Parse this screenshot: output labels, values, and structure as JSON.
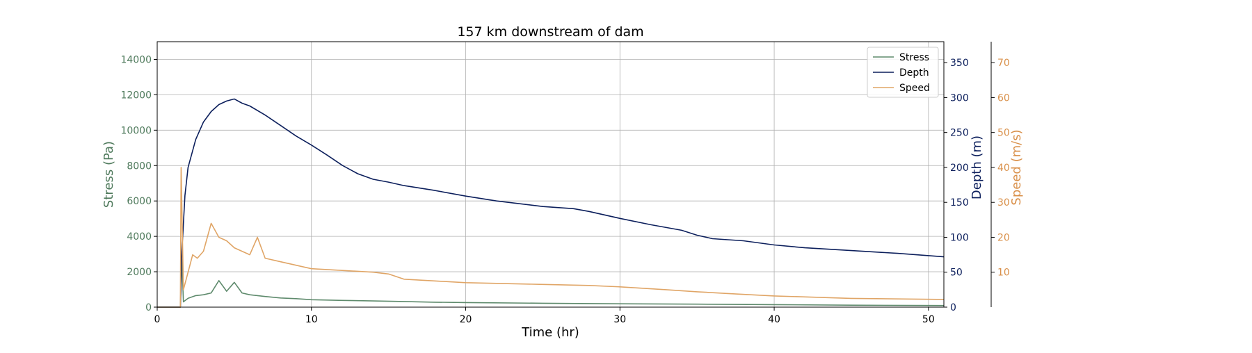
{
  "chart_data": {
    "type": "line",
    "title": "157 km downstream of dam",
    "xlabel": "Time (hr)",
    "xlim": [
      0,
      51
    ],
    "xticks": [
      0,
      10,
      20,
      30,
      40,
      50
    ],
    "grid": true,
    "legend_position": "top-right",
    "axes": {
      "stress": {
        "label": "Stress (Pa)",
        "color": "#4f7a5c",
        "ylim": [
          0,
          15000
        ],
        "ticks": [
          0,
          2000,
          4000,
          6000,
          8000,
          10000,
          12000,
          14000
        ]
      },
      "depth": {
        "label": "Depth (m)",
        "color": "#0c1f5c",
        "ylim": [
          0,
          380
        ],
        "ticks": [
          0,
          50,
          100,
          150,
          200,
          250,
          300,
          350
        ]
      },
      "speed": {
        "label": "Speed (m/s)",
        "color": "#d9904a",
        "ylim": [
          0,
          76
        ],
        "ticks": [
          10,
          20,
          30,
          40,
          50,
          60,
          70
        ]
      }
    },
    "series": [
      {
        "name": "Stress",
        "axis": "stress",
        "color": "#5e8a6c",
        "x": [
          0,
          1.5,
          1.6,
          1.7,
          2.0,
          2.5,
          3.0,
          3.5,
          4.0,
          4.5,
          5.0,
          5.5,
          6.0,
          7.0,
          8.0,
          9.0,
          10.0,
          12.0,
          14.0,
          16.0,
          18.0,
          20.0,
          25.0,
          30.0,
          35.0,
          40.0,
          45.0,
          51.0
        ],
        "values": [
          0,
          0,
          2700,
          300,
          500,
          650,
          700,
          800,
          1500,
          900,
          1400,
          800,
          700,
          600,
          520,
          480,
          420,
          380,
          350,
          320,
          280,
          260,
          220,
          190,
          170,
          140,
          110,
          90
        ]
      },
      {
        "name": "Depth",
        "axis": "depth",
        "color": "#0c1f5c",
        "x": [
          0,
          1.5,
          1.6,
          1.8,
          2.0,
          2.5,
          3.0,
          3.5,
          4.0,
          4.5,
          5.0,
          5.5,
          6.0,
          7.0,
          8.0,
          9.0,
          10.0,
          11.0,
          12.0,
          13.0,
          14.0,
          15.0,
          16.0,
          18.0,
          20.0,
          22.0,
          25.0,
          27.0,
          28.0,
          30.0,
          32.0,
          34.0,
          35.0,
          36.0,
          38.0,
          40.0,
          42.0,
          45.0,
          48.0,
          51.0
        ],
        "values": [
          0,
          0,
          80,
          160,
          200,
          240,
          265,
          280,
          290,
          295,
          298,
          292,
          288,
          275,
          260,
          245,
          232,
          218,
          203,
          191,
          183,
          179,
          174,
          167,
          159,
          152,
          144,
          141,
          137,
          127,
          118,
          110,
          103,
          98,
          95,
          89,
          85,
          81,
          77,
          72
        ]
      },
      {
        "name": "Speed",
        "axis": "speed",
        "color": "#e0a566",
        "x": [
          0,
          1.5,
          1.55,
          1.7,
          2.0,
          2.3,
          2.6,
          3.0,
          3.5,
          4.0,
          4.5,
          5.0,
          5.5,
          6.0,
          6.5,
          7.0,
          8.0,
          9.0,
          10.0,
          12.0,
          14.0,
          15.0,
          16.0,
          18.0,
          20.0,
          22.0,
          25.0,
          28.0,
          30.0,
          33.0,
          35.0,
          37.0,
          40.0,
          45.0,
          51.0
        ],
        "values": [
          0,
          0,
          40,
          5,
          10,
          15,
          14,
          16,
          24,
          20,
          19,
          17,
          16,
          15,
          20,
          14,
          13,
          12,
          11,
          10.5,
          10,
          9.5,
          8,
          7.5,
          7,
          6.8,
          6.5,
          6.2,
          5.8,
          5,
          4.4,
          3.9,
          3.2,
          2.5,
          2.2
        ]
      }
    ]
  }
}
